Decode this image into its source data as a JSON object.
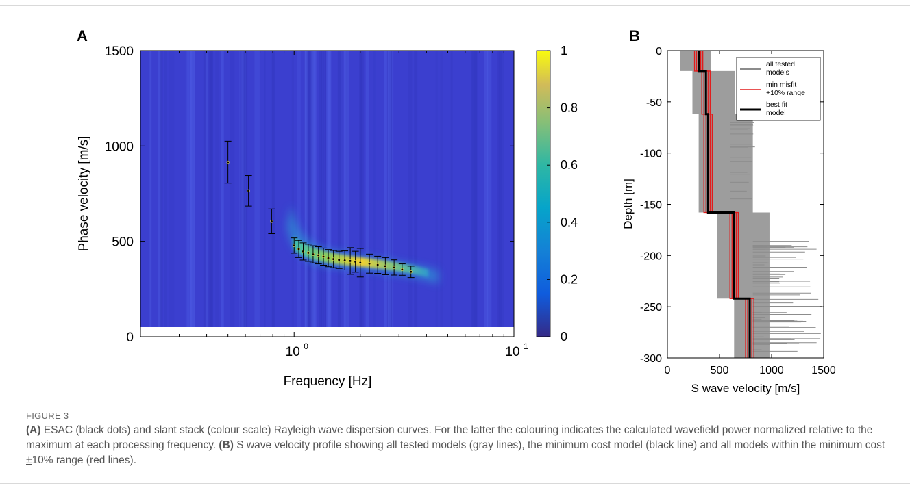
{
  "figure": {
    "label": "FIGURE 3",
    "caption": {
      "a_tag": "(A)",
      "a_text": " ESAC (black dots) and slant stack (colour scale) Rayleigh wave dispersion curves. For the latter the colouring indicates the calculated wavefield power normalized relative to the maximum at each processing frequency. ",
      "b_tag": "(B)",
      "b_text_1": " S wave velocity profile showing all tested models (gray lines), the minimum cost model (black line) and all models within the minimum cost ",
      "pm": "±",
      "b_text_2": "10% range (red lines)."
    }
  },
  "colors": {
    "panel_bg": "#3b3fcf",
    "ridge_hi": "#f5d22c",
    "ridge_mid": "#3cc5b0",
    "gray_models": "#8c8c8c",
    "red_models": "#e21b1b",
    "best_fit": "#000000"
  },
  "chart_data": [
    {
      "panel": "A",
      "type": "heatmap",
      "xlabel": "Frequency [Hz]",
      "ylabel": "Phase velocity [m/s]",
      "x_scale": "log",
      "xlim": [
        0.2,
        10
      ],
      "ylim": [
        0,
        1500
      ],
      "x_ticks": [
        {
          "base": "10",
          "exp": "0",
          "value": 1
        },
        {
          "base": "10",
          "exp": "1",
          "value": 10
        }
      ],
      "y_ticks": [
        "0",
        "500",
        "1000",
        "1500"
      ],
      "colorbar": {
        "range": [
          0,
          1
        ],
        "ticks": [
          "0",
          "0.2",
          "0.4",
          "0.6",
          "0.8",
          "1"
        ],
        "colormap": "parula"
      },
      "esac_points": {
        "x": [
          0.5,
          0.62,
          0.79,
          1.0,
          1.05,
          1.1,
          1.16,
          1.22,
          1.29,
          1.36,
          1.43,
          1.51,
          1.6,
          1.7,
          1.8,
          1.9,
          2.0,
          2.2,
          2.4,
          2.6,
          2.85,
          3.1,
          3.4
        ],
        "y": [
          915,
          765,
          605,
          478,
          460,
          447,
          440,
          432,
          427,
          420,
          412,
          407,
          403,
          400,
          397,
          393,
          388,
          383,
          377,
          370,
          363,
          352,
          340
        ],
        "err": [
          110,
          80,
          65,
          40,
          45,
          45,
          45,
          45,
          45,
          45,
          45,
          45,
          45,
          50,
          70,
          55,
          75,
          50,
          45,
          45,
          40,
          30,
          30
        ]
      }
    },
    {
      "panel": "B",
      "type": "line",
      "xlabel": "S wave velocity [m/s]",
      "ylabel": "Depth [m]",
      "xlim": [
        0,
        1500
      ],
      "ylim": [
        -300,
        0
      ],
      "x_ticks": [
        "0",
        "500",
        "1000",
        "1500"
      ],
      "y_ticks": [
        "0",
        "-50",
        "-100",
        "-150",
        "-200",
        "-250",
        "-300"
      ],
      "legend": {
        "placement": "top-right",
        "entries": [
          {
            "label": "all tested models",
            "line1": "all tested",
            "line2": "models",
            "color": "#8c8c8c"
          },
          {
            "label": "min misfit +10% range",
            "line1": "min misfit",
            "line2": "+10% range",
            "color": "#e21b1b"
          },
          {
            "label": "best fit model",
            "line1": "best fit",
            "line2": "model",
            "color": "#000000"
          }
        ]
      },
      "series": [
        {
          "name": "best fit model",
          "velocity": [
            300,
            300,
            370,
            370,
            390,
            390,
            640,
            640,
            790,
            790
          ],
          "depth": [
            0,
            -20,
            -20,
            -62,
            -62,
            -158,
            -158,
            -242,
            -242,
            -300
          ]
        }
      ]
    }
  ]
}
